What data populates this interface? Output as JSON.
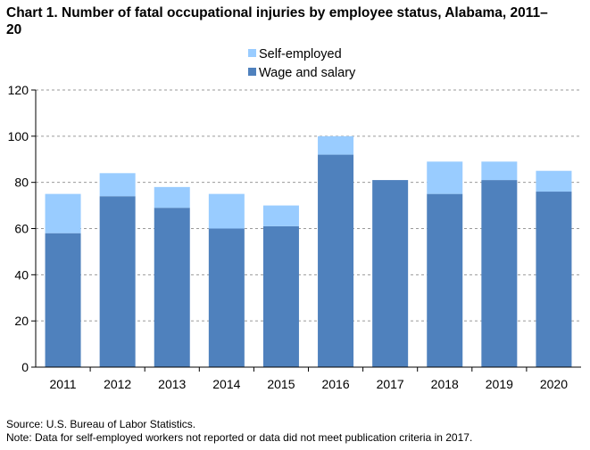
{
  "chart_data": {
    "type": "bar",
    "stacked": true,
    "title": "Chart 1. Number of fatal occupational injuries by employee status, Alabama, 2011–20",
    "categories": [
      "2011",
      "2012",
      "2013",
      "2014",
      "2015",
      "2016",
      "2017",
      "2018",
      "2019",
      "2020"
    ],
    "series": [
      {
        "name": "Wage and salary",
        "color": "#4f81bd",
        "values": [
          58,
          74,
          69,
          60,
          61,
          92,
          81,
          75,
          81,
          76
        ]
      },
      {
        "name": "Self-employed",
        "color": "#99ccff",
        "values": [
          17,
          10,
          9,
          15,
          9,
          8,
          0,
          14,
          8,
          9
        ]
      }
    ],
    "legend_order": [
      "Self-employed",
      "Wage and salary"
    ],
    "legend_position": "top-center",
    "ylim": [
      0,
      120
    ],
    "yticks": [
      0,
      20,
      40,
      60,
      80,
      100,
      120
    ],
    "grid": "horizontal dashed",
    "xlabel": "",
    "ylabel": ""
  },
  "notes": {
    "source": "Source: U.S. Bureau of Labor Statistics.",
    "note": "Note: Data for self-employed workers not reported or data did not meet publication criteria in 2017."
  }
}
